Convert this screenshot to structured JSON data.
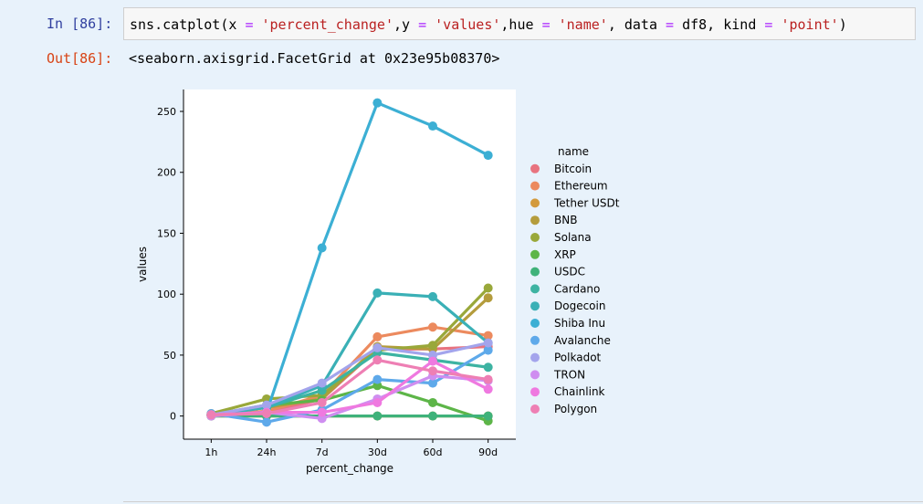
{
  "cell": {
    "in_prompt": "In [86]:",
    "out_prompt": "Out[86]:",
    "code_tokens": [
      {
        "t": "sns.catplot(x ",
        "c": ""
      },
      {
        "t": "=",
        "c": "op"
      },
      {
        "t": " ",
        "c": ""
      },
      {
        "t": "'percent_change'",
        "c": "str"
      },
      {
        "t": ",y ",
        "c": ""
      },
      {
        "t": "=",
        "c": "op"
      },
      {
        "t": " ",
        "c": ""
      },
      {
        "t": "'values'",
        "c": "str"
      },
      {
        "t": ",hue ",
        "c": ""
      },
      {
        "t": "=",
        "c": "op"
      },
      {
        "t": " ",
        "c": ""
      },
      {
        "t": "'name'",
        "c": "str"
      },
      {
        "t": ", data ",
        "c": ""
      },
      {
        "t": "=",
        "c": "op"
      },
      {
        "t": " df8, kind ",
        "c": ""
      },
      {
        "t": "=",
        "c": "op"
      },
      {
        "t": " ",
        "c": ""
      },
      {
        "t": "'point'",
        "c": "str"
      },
      {
        "t": ")",
        "c": ""
      }
    ],
    "output_text": "<seaborn.axisgrid.FacetGrid at 0x23e95b08370>"
  },
  "chart_data": {
    "type": "line",
    "xlabel": "percent_change",
    "ylabel": "values",
    "categories": [
      "1h",
      "24h",
      "7d",
      "30d",
      "60d",
      "90d"
    ],
    "ylim": [
      -19,
      268
    ],
    "yticks": [
      0,
      50,
      100,
      150,
      200,
      250
    ],
    "grid": false,
    "legend_title": "name",
    "legend_position": "right",
    "series": [
      {
        "name": "Bitcoin",
        "color": "#e8737f",
        "values": [
          0.5,
          3,
          14,
          55,
          55,
          57
        ]
      },
      {
        "name": "Ethereum",
        "color": "#ec8a5e",
        "values": [
          1,
          4,
          17,
          65,
          73,
          66
        ]
      },
      {
        "name": "Tether USDt",
        "color": "#d39a3c",
        "values": [
          0,
          0,
          0,
          0,
          0,
          0
        ]
      },
      {
        "name": "BNB",
        "color": "#b49c3c",
        "values": [
          1,
          7,
          14,
          57,
          55,
          97
        ]
      },
      {
        "name": "Solana",
        "color": "#99a83a",
        "values": [
          2,
          14,
          17,
          54,
          58,
          105
        ]
      },
      {
        "name": "XRP",
        "color": "#5db548",
        "values": [
          1,
          9,
          13,
          25,
          11,
          -4
        ]
      },
      {
        "name": "USDC",
        "color": "#3fb27a",
        "values": [
          0,
          0,
          0,
          0,
          0,
          0
        ]
      },
      {
        "name": "Cardano",
        "color": "#3db3a2",
        "values": [
          1,
          7,
          21,
          52,
          46,
          40
        ]
      },
      {
        "name": "Dogecoin",
        "color": "#3ab0b6",
        "values": [
          1,
          7,
          25,
          101,
          98,
          60
        ]
      },
      {
        "name": "Shiba Inu",
        "color": "#3cafd4",
        "values": [
          1,
          3,
          138,
          257,
          238,
          214
        ]
      },
      {
        "name": "Avalanche",
        "color": "#5ea9ea",
        "values": [
          2,
          -5,
          5,
          30,
          27,
          54
        ]
      },
      {
        "name": "Polkadot",
        "color": "#a3a4ec",
        "values": [
          1,
          9,
          27,
          56,
          50,
          60
        ]
      },
      {
        "name": "TRON",
        "color": "#cf8ef0",
        "values": [
          0,
          3,
          -2,
          14,
          33,
          29
        ]
      },
      {
        "name": "Chainlink",
        "color": "#ef79e0",
        "values": [
          1,
          3,
          3,
          11,
          45,
          22
        ]
      },
      {
        "name": "Polygon",
        "color": "#ee7fb4",
        "values": [
          1,
          2,
          11,
          46,
          37,
          30
        ]
      }
    ]
  }
}
